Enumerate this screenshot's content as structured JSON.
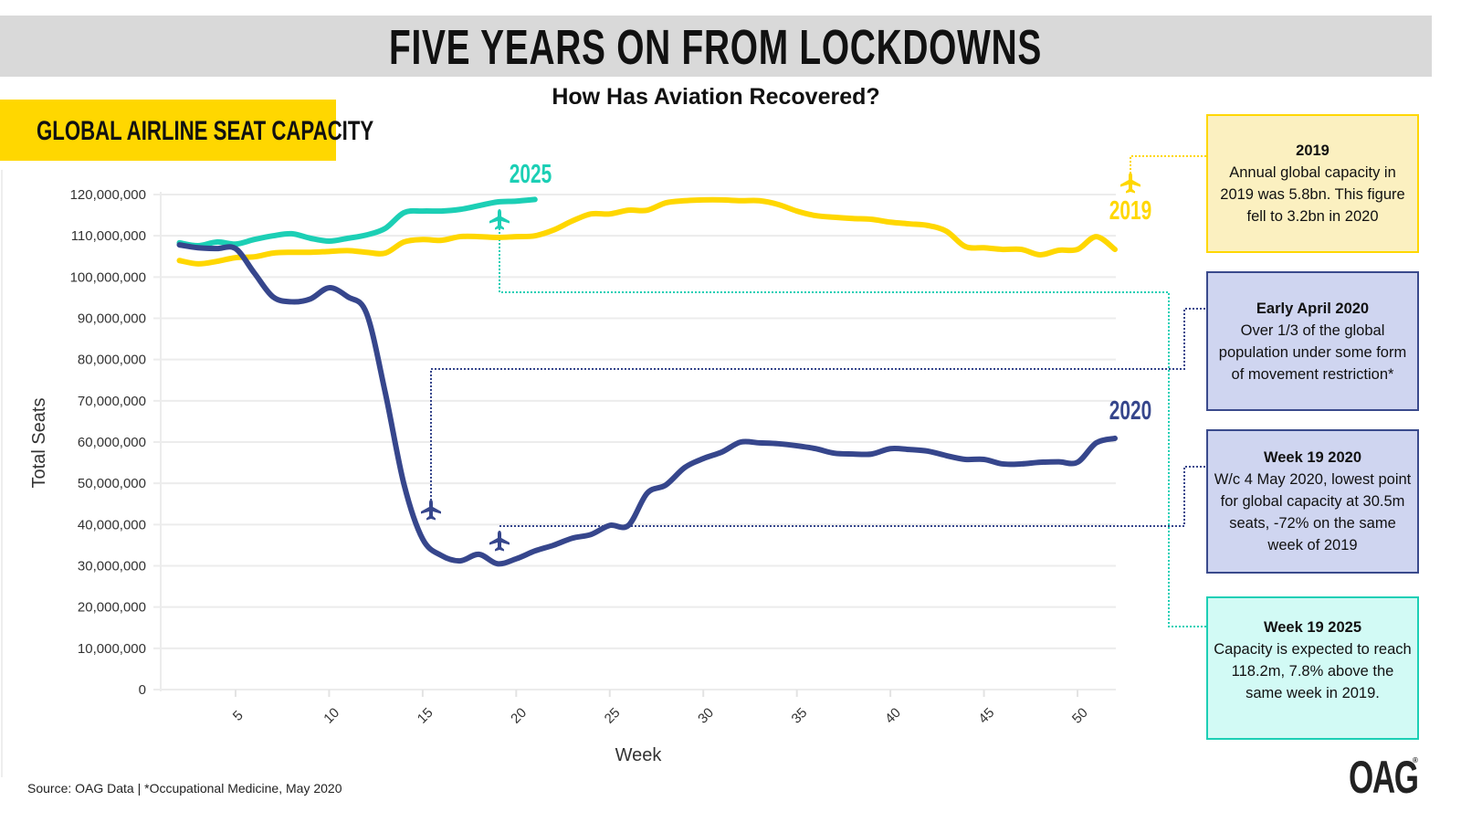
{
  "header": {
    "title": "FIVE YEARS ON FROM LOCKDOWNS",
    "subtitle": "How Has Aviation Recovered?",
    "section_tag": "GLOBAL AIRLINE SEAT CAPACITY"
  },
  "chart_data": {
    "type": "line",
    "xlabel": "Week",
    "ylabel": "Total Seats",
    "xlim": [
      1,
      52
    ],
    "ylim": [
      0,
      120000000
    ],
    "x_ticks": [
      5,
      10,
      15,
      20,
      25,
      30,
      35,
      40,
      45,
      50
    ],
    "y_ticks": [
      0,
      10000000,
      20000000,
      30000000,
      40000000,
      50000000,
      60000000,
      70000000,
      80000000,
      90000000,
      100000000,
      110000000,
      120000000
    ],
    "y_tick_labels": [
      "0",
      "10,000,000",
      "20,000,000",
      "30,000,000",
      "40,000,000",
      "50,000,000",
      "60,000,000",
      "70,000,000",
      "80,000,000",
      "90,000,000",
      "100,000,000",
      "110,000,000",
      "120,000,000"
    ],
    "grid": "horizontal",
    "series": [
      {
        "name": "2019",
        "color": "#ffd700",
        "start_week": 2,
        "values_millions": [
          104,
          103.2,
          103.8,
          104.7,
          104.9,
          105.8,
          106,
          106,
          106.2,
          106.4,
          106,
          105.8,
          108.5,
          109.1,
          108.9,
          109.8,
          109.8,
          109.6,
          109.8,
          110,
          111.4,
          113.6,
          115.3,
          115.3,
          116.2,
          116.2,
          118,
          118.5,
          118.7,
          118.7,
          118.5,
          118.5,
          117.6,
          116,
          114.9,
          114.5,
          114.2,
          114,
          113.3,
          112.9,
          112.5,
          111.1,
          107.4,
          107.1,
          106.7,
          106.7,
          105.4,
          106.5,
          106.7,
          109.8,
          106.7
        ]
      },
      {
        "name": "2020",
        "color": "#36468c",
        "start_week": 2,
        "values_millions": [
          107.8,
          107.1,
          106.9,
          106.9,
          101,
          95.2,
          94,
          94.7,
          97.4,
          95.2,
          91.2,
          72,
          49.8,
          36.5,
          32.5,
          31.2,
          32.8,
          30.5,
          31.7,
          33.6,
          35,
          36.7,
          37.6,
          39.8,
          39.8,
          47.6,
          49.6,
          53.8,
          56,
          57.6,
          60,
          59.8,
          59.6,
          59.1,
          58.4,
          57.3,
          57.1,
          57.1,
          58.4,
          58.2,
          57.8,
          56.7,
          55.8,
          55.8,
          54.7,
          54.7,
          55.1,
          55.2,
          55.1,
          59.8,
          60.9
        ]
      },
      {
        "name": "2025",
        "color": "#1ccfb5",
        "start_week": 2,
        "values_millions": [
          108.3,
          107.6,
          108.5,
          108,
          109.1,
          110,
          110.5,
          109.4,
          108.7,
          109.4,
          110.2,
          111.8,
          115.6,
          116,
          116,
          116.4,
          117.3,
          118.2,
          118.4,
          118.8
        ]
      }
    ],
    "annotations": [
      {
        "week": 19,
        "series": "2025",
        "title": "Week 19 2025",
        "text": "Capacity is expected to reach 118.2m, 7.8% above the same week in 2019."
      },
      {
        "week": 15.3,
        "series": "2020",
        "title": "Early April 2020",
        "text": "Over 1/3 of the global population under some form of movement restriction*"
      },
      {
        "week": 19,
        "series": "2020",
        "title": "Week 19 2020",
        "text": "W/c 4 May 2020, lowest point for global capacity at 30.5m seats, -72% on the same week of 2019"
      },
      {
        "week": 52,
        "series": "2019",
        "title": "2019",
        "text": "Annual global capacity in 2019 was 5.8bn. This figure fell to 3.2bn in 2020"
      }
    ]
  },
  "boxes": {
    "y2019": {
      "title": "2019",
      "text": "Annual global capacity in 2019 was 5.8bn. This figure fell to 3.2bn in 2020"
    },
    "april": {
      "title": "Early April 2020",
      "text": "Over 1/3 of the global population under some form of movement restriction*"
    },
    "w19_2020": {
      "title": "Week 19 2020",
      "text": "W/c 4 May 2020, lowest point for global capacity at 30.5m seats, -72% on the same week of 2019"
    },
    "w19_2025": {
      "title": "Week 19 2025",
      "text": "Capacity is expected to reach 118.2m, 7.8% above the same week in 2019."
    }
  },
  "footer": {
    "source": "Source: OAG Data | *Occupational Medicine, May 2020",
    "logo": "OAG"
  },
  "icons": {
    "marker": "airplane-icon"
  }
}
